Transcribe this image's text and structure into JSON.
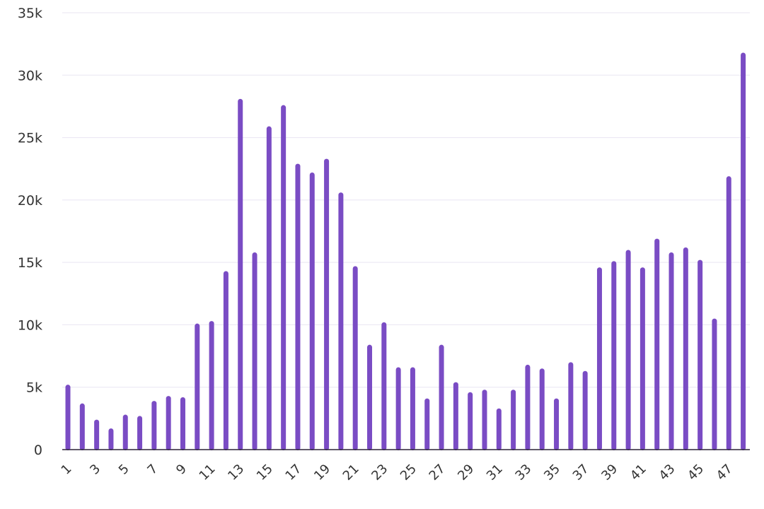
{
  "chart_data": {
    "type": "bar",
    "title": "",
    "xlabel": "",
    "ylabel": "",
    "bar_color": "#7a4cc4",
    "grid_color": "#e9e5f2",
    "grid": true,
    "legend": "none",
    "ylim": [
      0,
      35000
    ],
    "yticks": [
      {
        "value": 0,
        "label": "0"
      },
      {
        "value": 5000,
        "label": "5k"
      },
      {
        "value": 10000,
        "label": "10k"
      },
      {
        "value": 15000,
        "label": "15k"
      },
      {
        "value": 20000,
        "label": "20k"
      },
      {
        "value": 25000,
        "label": "25k"
      },
      {
        "value": 30000,
        "label": "30k"
      },
      {
        "value": 35000,
        "label": "35k"
      }
    ],
    "categories": [
      "1",
      "2",
      "3",
      "4",
      "5",
      "6",
      "7",
      "8",
      "9",
      "10",
      "11",
      "12",
      "13",
      "14",
      "15",
      "16",
      "17",
      "18",
      "19",
      "20",
      "21",
      "22",
      "23",
      "24",
      "25",
      "26",
      "27",
      "28",
      "29",
      "30",
      "31",
      "32",
      "33",
      "34",
      "35",
      "36",
      "37",
      "38",
      "39",
      "40",
      "41",
      "42",
      "43",
      "44",
      "45",
      "46",
      "47",
      "48"
    ],
    "xtick_labels": [
      "1",
      "3",
      "5",
      "7",
      "9",
      "11",
      "13",
      "15",
      "17",
      "19",
      "21",
      "23",
      "25",
      "27",
      "29",
      "31",
      "33",
      "35",
      "37",
      "39",
      "41",
      "43",
      "45",
      "47"
    ],
    "values": [
      5200,
      3700,
      2400,
      1700,
      2800,
      2700,
      3900,
      4300,
      4200,
      10100,
      10300,
      14300,
      28100,
      15800,
      25900,
      27600,
      22900,
      22200,
      23300,
      20600,
      14700,
      8400,
      10200,
      6600,
      6600,
      4100,
      8400,
      5400,
      4600,
      4800,
      3300,
      4800,
      6800,
      6500,
      4100,
      7000,
      6300,
      14600,
      15100,
      16000,
      14600,
      16900,
      15800,
      16200,
      15200,
      10500,
      21900,
      31800
    ]
  }
}
